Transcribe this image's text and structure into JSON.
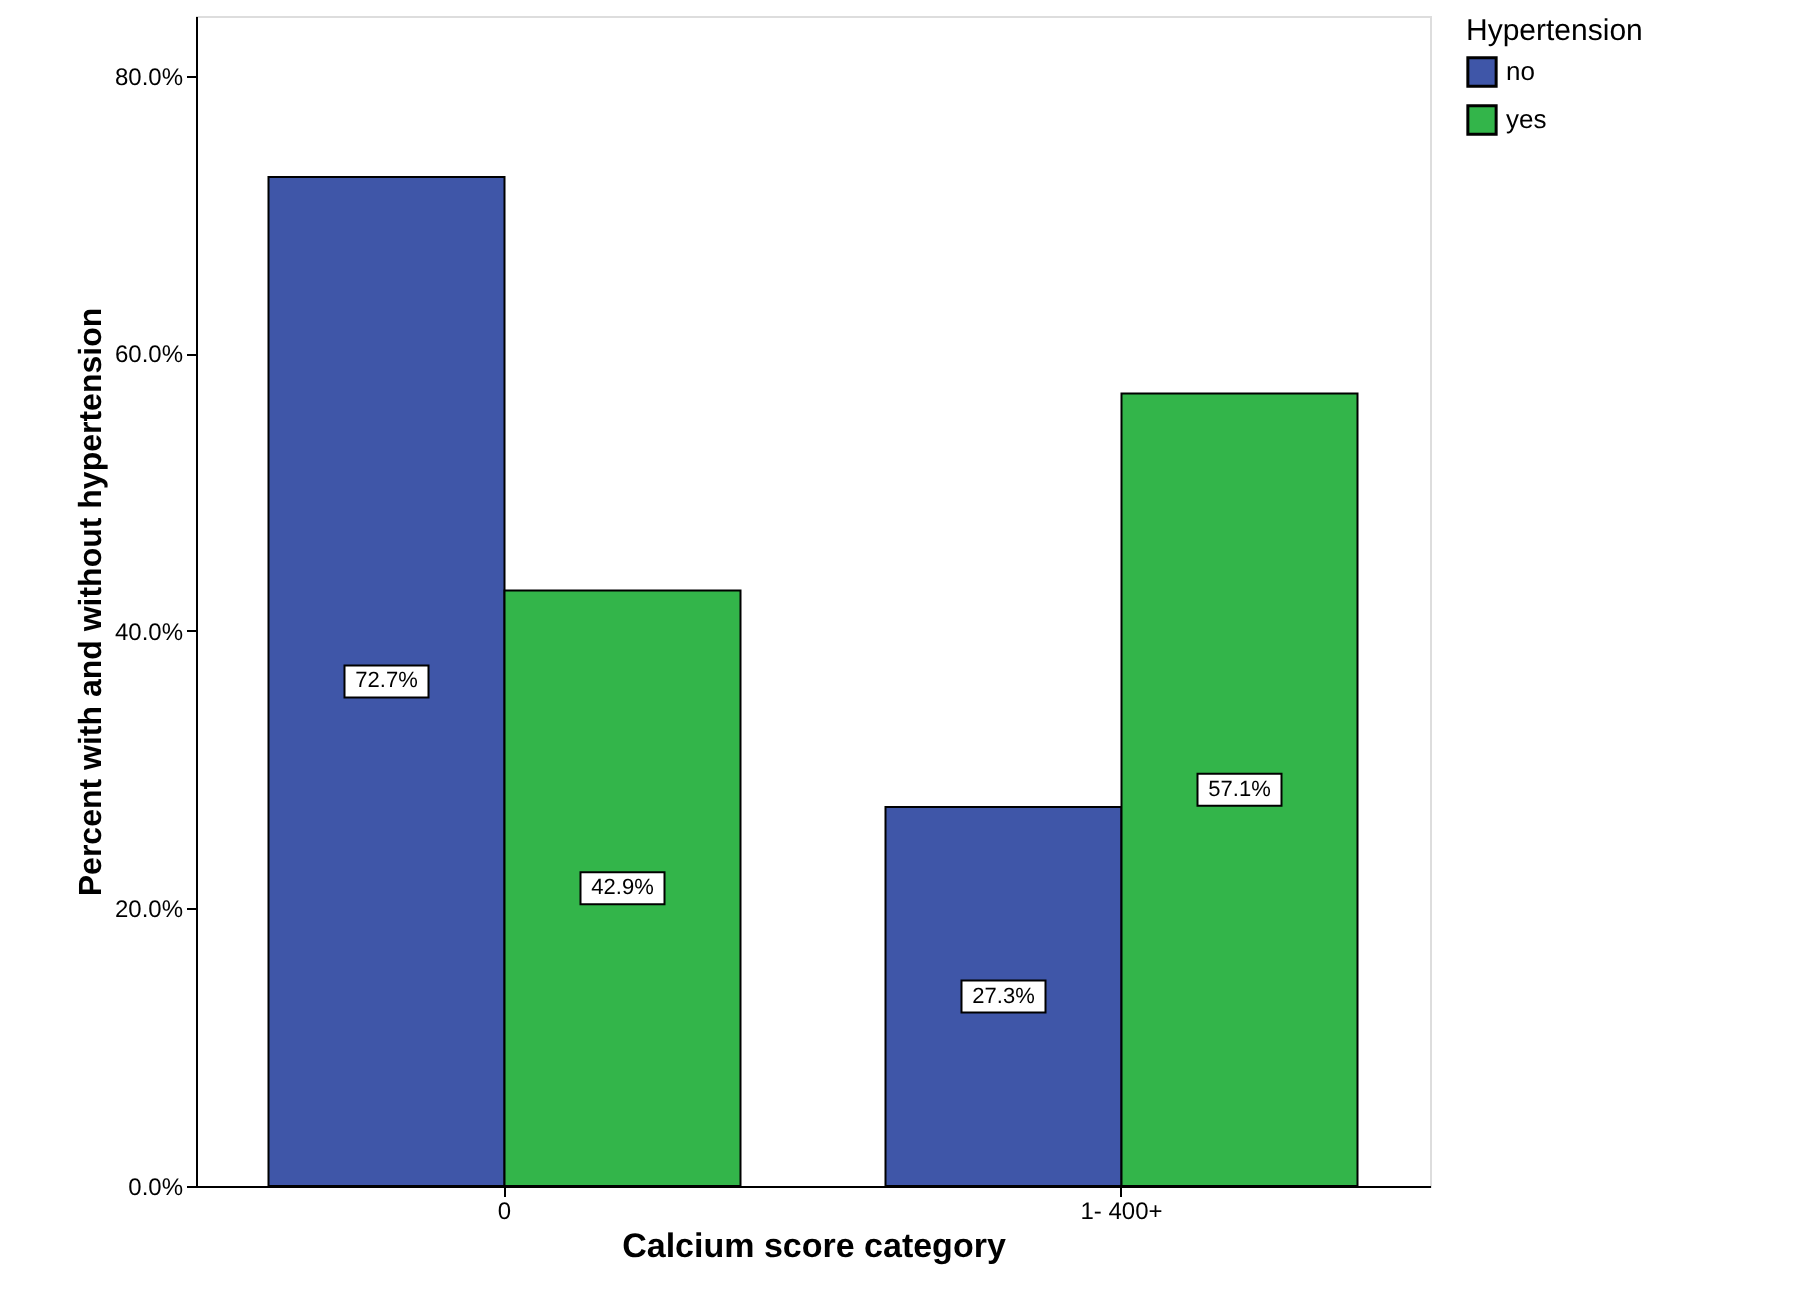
{
  "chart_data": {
    "type": "bar",
    "xlabel": "Calcium score category",
    "ylabel": "Percent with and without hypertension",
    "legend_title": "Hypertension",
    "legend": "top right",
    "categories": [
      "0",
      "1- 400+"
    ],
    "series": [
      {
        "name": "no",
        "color": "#3f56a8",
        "values": [
          72.7,
          27.3
        ],
        "value_labels": [
          "72.7%",
          "27.3%"
        ]
      },
      {
        "name": "yes",
        "color": "#33b54a",
        "values": [
          42.9,
          57.1
        ],
        "value_labels": [
          "42.9%",
          "57.1%"
        ]
      }
    ],
    "ylim": [
      0,
      84.3
    ],
    "yticks": [
      {
        "value": 0,
        "label": "0.0%"
      },
      {
        "value": 20,
        "label": "20.0%"
      },
      {
        "value": 40,
        "label": "40.0%"
      },
      {
        "value": 60,
        "label": "60.0%"
      },
      {
        "value": 80,
        "label": "80.0%"
      }
    ],
    "grid": false
  }
}
